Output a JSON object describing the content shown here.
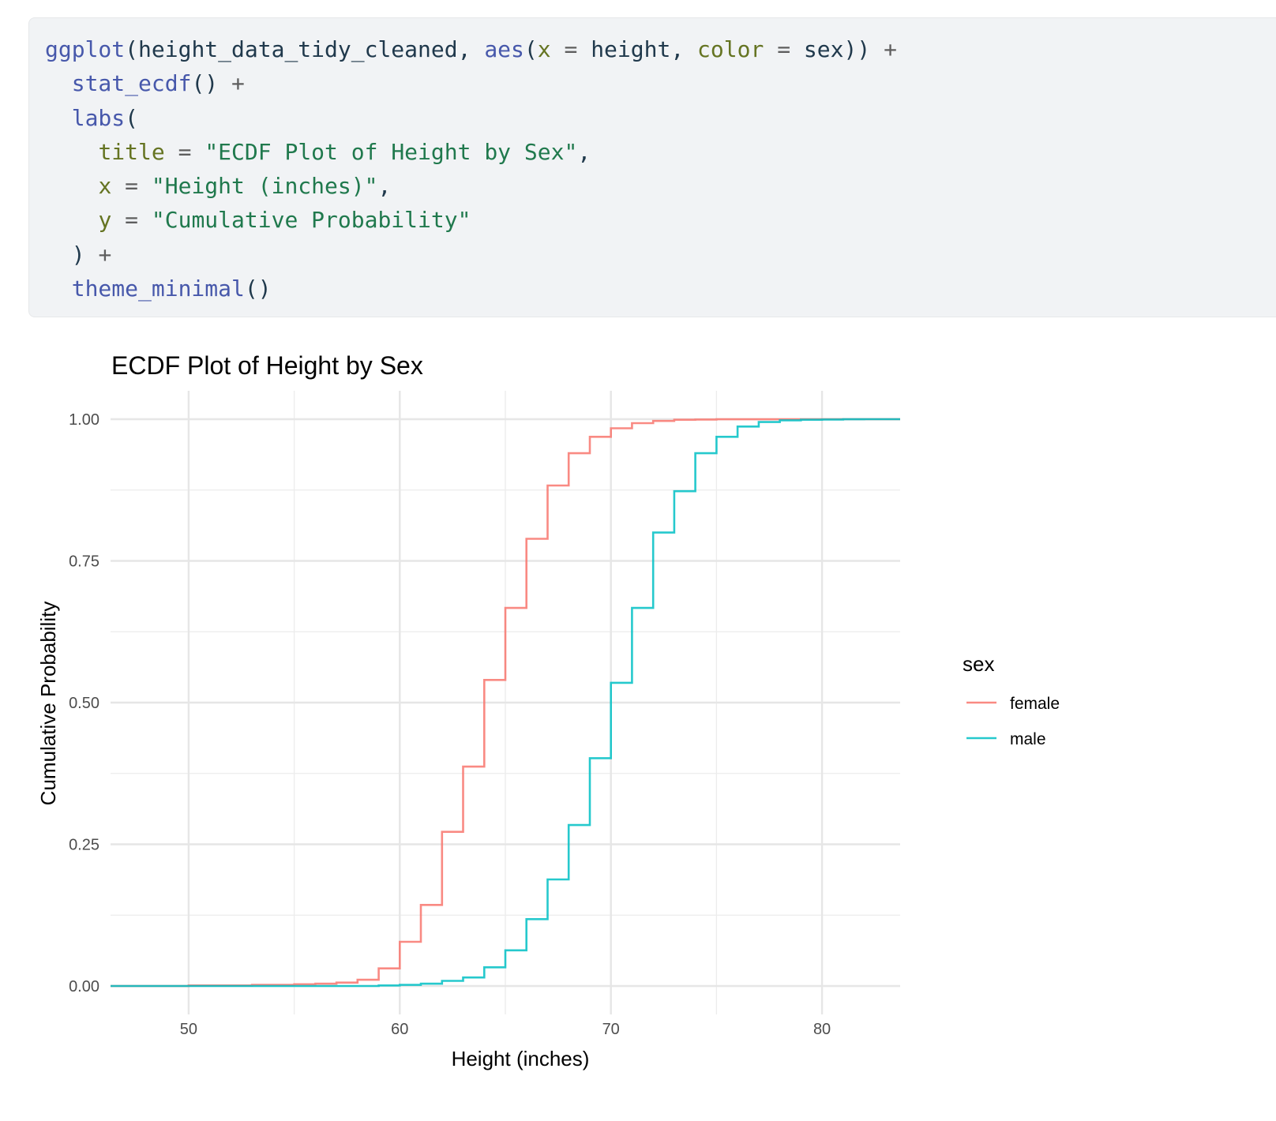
{
  "code": {
    "lines": [
      [
        {
          "t": "ggplot",
          "c": "fn"
        },
        {
          "t": "(height_data_tidy_cleaned, ",
          "c": ""
        },
        {
          "t": "aes",
          "c": "fn"
        },
        {
          "t": "(",
          "c": ""
        },
        {
          "t": "x",
          "c": "arg"
        },
        {
          "t": " = ",
          "c": "op"
        },
        {
          "t": "height, ",
          "c": ""
        },
        {
          "t": "color",
          "c": "arg"
        },
        {
          "t": " = ",
          "c": "op"
        },
        {
          "t": "sex)) ",
          "c": ""
        },
        {
          "t": "+",
          "c": "op"
        }
      ],
      [
        {
          "t": "  ",
          "c": ""
        },
        {
          "t": "stat_ecdf",
          "c": "fn"
        },
        {
          "t": "() ",
          "c": ""
        },
        {
          "t": "+",
          "c": "op"
        }
      ],
      [
        {
          "t": "  ",
          "c": ""
        },
        {
          "t": "labs",
          "c": "fn"
        },
        {
          "t": "(",
          "c": ""
        }
      ],
      [
        {
          "t": "    ",
          "c": ""
        },
        {
          "t": "title",
          "c": "arg"
        },
        {
          "t": " = ",
          "c": "op"
        },
        {
          "t": "\"ECDF Plot of Height by Sex\"",
          "c": "str"
        },
        {
          "t": ",",
          "c": ""
        }
      ],
      [
        {
          "t": "    ",
          "c": ""
        },
        {
          "t": "x",
          "c": "arg"
        },
        {
          "t": " = ",
          "c": "op"
        },
        {
          "t": "\"Height (inches)\"",
          "c": "str"
        },
        {
          "t": ",",
          "c": ""
        }
      ],
      [
        {
          "t": "    ",
          "c": ""
        },
        {
          "t": "y",
          "c": "arg"
        },
        {
          "t": " = ",
          "c": "op"
        },
        {
          "t": "\"Cumulative Probability\"",
          "c": "str"
        }
      ],
      [
        {
          "t": "  ) ",
          "c": ""
        },
        {
          "t": "+",
          "c": "op"
        }
      ],
      [
        {
          "t": "  ",
          "c": ""
        },
        {
          "t": "theme_minimal",
          "c": "fn"
        },
        {
          "t": "()",
          "c": ""
        }
      ]
    ]
  },
  "chart_data": {
    "type": "line",
    "title": "ECDF Plot of Height by Sex",
    "xlabel": "Height (inches)",
    "ylabel": "Cumulative Probability",
    "xlim": [
      46.3,
      83.7
    ],
    "ylim": [
      0,
      1
    ],
    "x_ticks": [
      50,
      60,
      70,
      80
    ],
    "x_tick_labels": [
      "50",
      "60",
      "70",
      "80"
    ],
    "y_ticks": [
      0,
      0.25,
      0.5,
      0.75,
      1
    ],
    "y_tick_labels": [
      "0.00",
      "0.25",
      "0.50",
      "0.75",
      "1.00"
    ],
    "grid": true,
    "legend": {
      "title": "sex",
      "position": "right"
    },
    "series": [
      {
        "name": "female",
        "color": "#F8766D",
        "x": [
          50,
          53,
          55,
          56,
          57,
          58,
          59,
          60,
          61,
          62,
          63,
          64,
          65,
          66,
          67,
          68,
          69,
          70,
          71,
          72,
          73,
          74,
          75,
          78,
          79
        ],
        "y": [
          0.001,
          0.002,
          0.003,
          0.004,
          0.006,
          0.011,
          0.031,
          0.078,
          0.143,
          0.272,
          0.387,
          0.54,
          0.667,
          0.789,
          0.883,
          0.94,
          0.969,
          0.984,
          0.993,
          0.997,
          0.999,
          0.9995,
          0.9998,
          0.9999,
          1.0
        ]
      },
      {
        "name": "male",
        "color": "#00BFC4",
        "x": [
          59,
          60,
          61,
          62,
          63,
          64,
          65,
          66,
          67,
          68,
          69,
          70,
          71,
          72,
          73,
          74,
          75,
          76,
          77,
          78,
          79,
          80,
          81,
          82
        ],
        "y": [
          0.001,
          0.002,
          0.004,
          0.009,
          0.015,
          0.033,
          0.063,
          0.118,
          0.188,
          0.284,
          0.402,
          0.535,
          0.667,
          0.8,
          0.873,
          0.94,
          0.969,
          0.987,
          0.995,
          0.998,
          0.999,
          0.9995,
          0.9999,
          1.0
        ]
      }
    ]
  }
}
